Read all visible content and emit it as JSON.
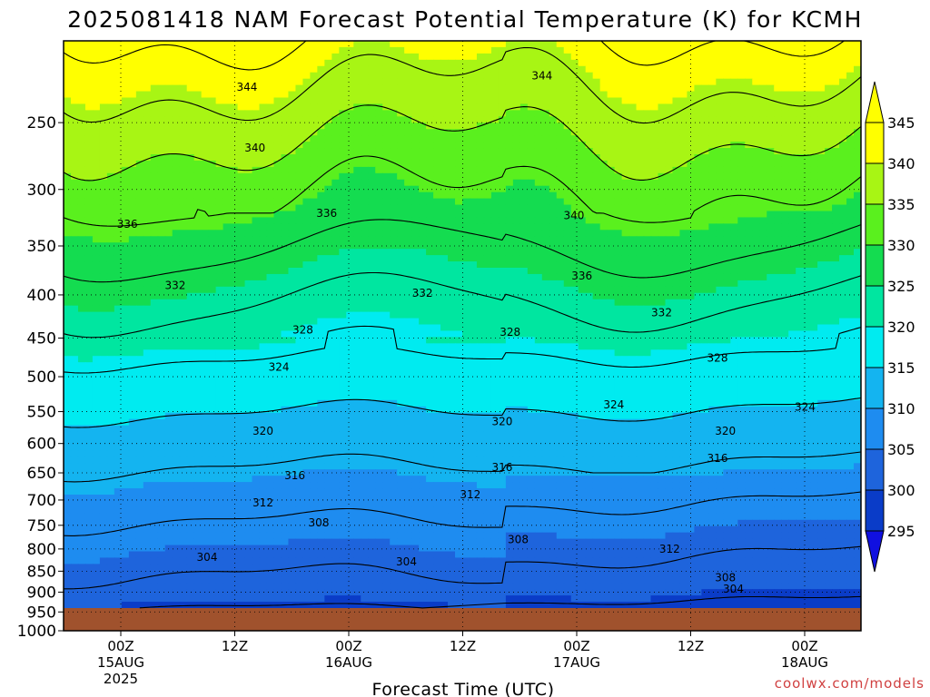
{
  "chart_data": {
    "type": "heatmap",
    "title": "2025081418 NAM Forecast Potential Temperature (K) for KCMH",
    "xlabel": "Forecast Time (UTC)",
    "ylabel": "",
    "credit": "coolwx.com/models",
    "y_ticks": [
      250,
      300,
      350,
      400,
      450,
      500,
      550,
      600,
      650,
      700,
      750,
      800,
      850,
      900,
      950,
      1000
    ],
    "y_axis": "pressure (hPa), log scale, inverted",
    "ylim": [
      1000,
      200
    ],
    "x_ticks": [
      {
        "line1": "00Z",
        "line2": "15AUG",
        "line3": "2025"
      },
      {
        "line1": "12Z",
        "line2": "",
        "line3": ""
      },
      {
        "line1": "00Z",
        "line2": "16AUG",
        "line3": ""
      },
      {
        "line1": "12Z",
        "line2": "",
        "line3": ""
      },
      {
        "line1": "00Z",
        "line2": "17AUG",
        "line3": ""
      },
      {
        "line1": "12Z",
        "line2": "",
        "line3": ""
      },
      {
        "line1": "00Z",
        "line2": "18AUG",
        "line3": ""
      }
    ],
    "colorbar": {
      "levels": [
        295,
        300,
        305,
        310,
        315,
        320,
        325,
        330,
        335,
        340,
        345
      ],
      "colors": [
        "#1010e0",
        "#0a3cc8",
        "#1e64dc",
        "#1e8cf0",
        "#14b4f0",
        "#00ebf0",
        "#00e6a0",
        "#14dc50",
        "#5af01e",
        "#a8f514",
        "#ffff00"
      ],
      "extend": "both"
    },
    "contour_labels": [
      {
        "value": "344",
        "x": 0.23,
        "p": 227
      },
      {
        "value": "344",
        "x": 0.6,
        "p": 220
      },
      {
        "value": "340",
        "x": 0.24,
        "p": 268
      },
      {
        "value": "340",
        "x": 0.64,
        "p": 322
      },
      {
        "value": "336",
        "x": 0.08,
        "p": 330
      },
      {
        "value": "336",
        "x": 0.33,
        "p": 320
      },
      {
        "value": "336",
        "x": 0.65,
        "p": 380
      },
      {
        "value": "332",
        "x": 0.14,
        "p": 390
      },
      {
        "value": "332",
        "x": 0.45,
        "p": 398
      },
      {
        "value": "332",
        "x": 0.75,
        "p": 420
      },
      {
        "value": "328",
        "x": 0.3,
        "p": 440
      },
      {
        "value": "328",
        "x": 0.56,
        "p": 443
      },
      {
        "value": "328",
        "x": 0.82,
        "p": 475
      },
      {
        "value": "324",
        "x": 0.27,
        "p": 487
      },
      {
        "value": "324",
        "x": 0.69,
        "p": 540
      },
      {
        "value": "324",
        "x": 0.93,
        "p": 543
      },
      {
        "value": "320",
        "x": 0.25,
        "p": 580
      },
      {
        "value": "320",
        "x": 0.55,
        "p": 565
      },
      {
        "value": "320",
        "x": 0.83,
        "p": 580
      },
      {
        "value": "316",
        "x": 0.29,
        "p": 655
      },
      {
        "value": "316",
        "x": 0.55,
        "p": 640
      },
      {
        "value": "316",
        "x": 0.82,
        "p": 625
      },
      {
        "value": "312",
        "x": 0.25,
        "p": 705
      },
      {
        "value": "312",
        "x": 0.51,
        "p": 690
      },
      {
        "value": "312",
        "x": 0.76,
        "p": 800
      },
      {
        "value": "308",
        "x": 0.32,
        "p": 745
      },
      {
        "value": "308",
        "x": 0.57,
        "p": 780
      },
      {
        "value": "308",
        "x": 0.83,
        "p": 865
      },
      {
        "value": "304",
        "x": 0.18,
        "p": 818
      },
      {
        "value": "304",
        "x": 0.43,
        "p": 828
      },
      {
        "value": "304",
        "x": 0.84,
        "p": 892
      }
    ]
  }
}
